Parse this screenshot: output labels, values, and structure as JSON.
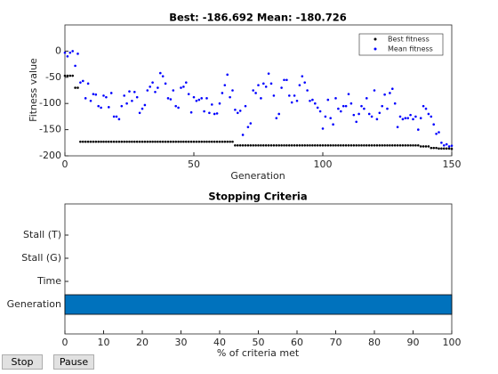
{
  "chart_data": [
    {
      "type": "scatter",
      "title": "Best: -186.692 Mean: -180.726",
      "xlabel": "Generation",
      "ylabel": "Fitness value",
      "x": [
        0,
        1,
        2,
        3,
        4,
        5,
        6,
        7,
        8,
        9,
        10,
        11,
        12,
        13,
        14,
        15,
        16,
        17,
        18,
        19,
        20,
        21,
        22,
        23,
        24,
        25,
        26,
        27,
        28,
        29,
        30,
        31,
        32,
        33,
        34,
        35,
        36,
        37,
        38,
        39,
        40,
        41,
        42,
        43,
        44,
        45,
        46,
        47,
        48,
        49,
        50,
        51,
        52,
        53,
        54,
        55,
        56,
        57,
        58,
        59,
        60,
        61,
        62,
        63,
        64,
        65,
        66,
        67,
        68,
        69,
        70,
        71,
        72,
        73,
        74,
        75,
        76,
        77,
        78,
        79,
        80,
        81,
        82,
        83,
        84,
        85,
        86,
        87,
        88,
        89,
        90,
        91,
        92,
        93,
        94,
        95,
        96,
        97,
        98,
        99,
        100,
        101,
        102,
        103,
        104,
        105,
        106,
        107,
        108,
        109,
        110,
        111,
        112,
        113,
        114,
        115,
        116,
        117,
        118,
        119,
        120,
        121,
        122,
        123,
        124,
        125,
        126,
        127,
        128,
        129,
        130,
        131,
        132,
        133,
        134,
        135,
        136,
        137,
        138,
        139,
        140,
        141,
        142,
        143,
        144,
        145,
        146,
        147,
        148,
        149,
        150
      ],
      "series": [
        {
          "name": "Best fitness",
          "color": "#000000",
          "values": [
            -47,
            -47,
            -47,
            -47,
            -70,
            -70,
            -173,
            -173,
            -173,
            -173,
            -173,
            -173,
            -173,
            -173,
            -173,
            -173,
            -173,
            -173,
            -173,
            -173,
            -173,
            -173,
            -173,
            -173,
            -173,
            -173,
            -173,
            -173,
            -173,
            -173,
            -173,
            -173,
            -173,
            -173,
            -173,
            -173,
            -173,
            -173,
            -173,
            -173,
            -173,
            -173,
            -173,
            -173,
            -173,
            -173,
            -173,
            -173,
            -173,
            -173,
            -173,
            -173,
            -173,
            -173,
            -173,
            -173,
            -173,
            -173,
            -173,
            -173,
            -173,
            -173,
            -173,
            -173,
            -173,
            -173,
            -180,
            -180,
            -180,
            -180,
            -180,
            -180,
            -180,
            -180,
            -180,
            -180,
            -180,
            -180,
            -180,
            -180,
            -180,
            -180,
            -180,
            -180,
            -180,
            -180,
            -180,
            -180,
            -180,
            -180,
            -180,
            -180,
            -180,
            -180,
            -180,
            -180,
            -180,
            -180,
            -180,
            -180,
            -180,
            -180,
            -180,
            -180,
            -180,
            -180,
            -180,
            -180,
            -180,
            -180,
            -180,
            -180,
            -180,
            -180,
            -180,
            -180,
            -180,
            -180,
            -180,
            -180,
            -180,
            -180,
            -180,
            -180,
            -180,
            -180,
            -180,
            -180,
            -180,
            -180,
            -180,
            -180,
            -180,
            -180,
            -180,
            -180,
            -180,
            -180,
            -182,
            -182,
            -182,
            -182,
            -185,
            -185,
            -185,
            -186,
            -186,
            -186,
            -186,
            -186,
            -186.692
          ]
        },
        {
          "name": "Mean fitness",
          "color": "#0000ff",
          "values": [
            -3,
            -10,
            -3,
            0,
            -28,
            -5,
            -60,
            -57,
            -90,
            -62,
            -95,
            -82,
            -83,
            -105,
            -108,
            -85,
            -88,
            -107,
            -80,
            -125,
            -125,
            -130,
            -105,
            -85,
            -100,
            -77,
            -95,
            -78,
            -88,
            -118,
            -110,
            -103,
            -75,
            -68,
            -60,
            -78,
            -70,
            -42,
            -48,
            -62,
            -90,
            -92,
            -75,
            -105,
            -108,
            -70,
            -68,
            -60,
            -82,
            -117,
            -88,
            -95,
            -93,
            -90,
            -115,
            -90,
            -118,
            -102,
            -120,
            -119,
            -100,
            -80,
            -65,
            -45,
            -88,
            -75,
            -112,
            -118,
            -114,
            -160,
            -105,
            -145,
            -138,
            -75,
            -80,
            -65,
            -90,
            -62,
            -68,
            -43,
            -62,
            -85,
            -128,
            -120,
            -70,
            -55,
            -55,
            -85,
            -98,
            -85,
            -95,
            -65,
            -48,
            -60,
            -75,
            -95,
            -93,
            -100,
            -108,
            -115,
            -148,
            -125,
            -93,
            -128,
            -140,
            -90,
            -110,
            -115,
            -105,
            -105,
            -82,
            -100,
            -122,
            -135,
            -120,
            -105,
            -110,
            -90,
            -120,
            -125,
            -75,
            -130,
            -118,
            -105,
            -83,
            -110,
            -80,
            -72,
            -100,
            -145,
            -125,
            -130,
            -128,
            -128,
            -122,
            -130,
            -125,
            -150,
            -128,
            -105,
            -110,
            -120,
            -125,
            -140,
            -158,
            -155,
            -175,
            -180,
            -178,
            -182,
            -180.726
          ]
        }
      ],
      "xlim": [
        0,
        150
      ],
      "ylim": [
        -200,
        50
      ],
      "xticks": [
        0,
        50,
        100,
        150
      ],
      "yticks": [
        -200,
        -150,
        -100,
        -50,
        0
      ],
      "legend": "northeast"
    },
    {
      "type": "bar",
      "orientation": "horizontal",
      "title": "Stopping Criteria",
      "xlabel": "% of criteria met",
      "categories": [
        "Generation",
        "Time",
        "Stall (G)",
        "Stall (T)"
      ],
      "values": [
        100,
        0,
        0,
        0
      ],
      "color": "#0072bd",
      "xlim": [
        0,
        100
      ],
      "xticks": [
        0,
        10,
        20,
        30,
        40,
        50,
        60,
        70,
        80,
        90,
        100
      ]
    }
  ],
  "buttons": [
    "Stop",
    "Pause"
  ]
}
